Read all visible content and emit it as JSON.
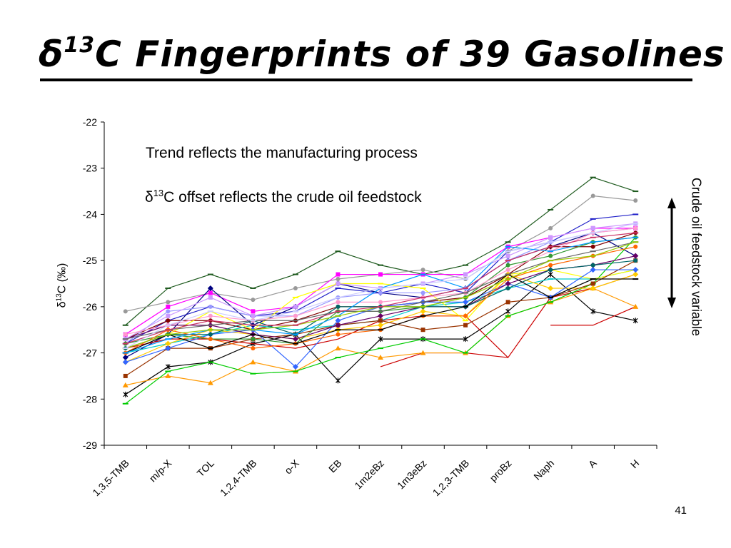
{
  "slide": {
    "title": "Fingerprints of 39 Gasolines",
    "title_prefix": "δ",
    "title_sup": "13",
    "title_c": "C",
    "annotation_trend": "Trend reflects the manufacturing process",
    "annotation_offset_prefix": "δ",
    "annotation_offset_sup": "13",
    "annotation_offset_rest": "C offset reflects the crude oil feedstock",
    "right_note": "Crude oil feedstock variable",
    "slide_number": "41"
  },
  "chart_data": {
    "type": "line",
    "ylabel_prefix": "δ",
    "ylabel_sup": "13",
    "ylabel_rest": "C (‰)",
    "xlabel": "",
    "ylim": [
      -29,
      -22
    ],
    "yticks": [
      -29,
      -28,
      -27,
      -26,
      -25,
      -24,
      -23,
      -22
    ],
    "grid": false,
    "categories": [
      "1,3,5-TMB",
      "m/p-X",
      "TOL",
      "1,2,4-TMB",
      "o-X",
      "EB",
      "1m2eBz",
      "1m3eBz",
      "1,2,3-TMB",
      "proBz",
      "Naph",
      "A",
      "H"
    ],
    "series": [
      {
        "color": "#1e5a1e",
        "marker": "dash",
        "values": [
          -26.4,
          -25.6,
          -25.3,
          -25.6,
          -25.3,
          -24.8,
          -25.1,
          -25.3,
          -25.1,
          -24.6,
          -23.9,
          -23.2,
          -23.5
        ]
      },
      {
        "color": "#999999",
        "marker": "circle",
        "values": [
          -26.1,
          -25.9,
          -25.7,
          -25.85,
          -25.6,
          -25.4,
          -25.3,
          -25.2,
          -25.4,
          -24.8,
          -24.3,
          -23.6,
          -23.7
        ]
      },
      {
        "color": "#1f1fc8",
        "marker": "dash",
        "values": [
          -26.8,
          -26.3,
          -26.0,
          -26.2,
          -26.1,
          -25.6,
          -25.7,
          -25.5,
          -25.7,
          -24.8,
          -24.6,
          -24.1,
          -24.0
        ]
      },
      {
        "color": "#ff00ff",
        "marker": "square",
        "values": [
          -26.6,
          -26.0,
          -25.7,
          -26.1,
          -26.0,
          -25.3,
          -25.3,
          -25.3,
          -25.3,
          -24.7,
          -24.5,
          -24.3,
          -24.3
        ]
      },
      {
        "color": "#000080",
        "marker": "diamond",
        "values": [
          -27.1,
          -26.6,
          -25.6,
          -26.4,
          -26.0,
          -25.5,
          -25.7,
          -25.8,
          -25.6,
          -25.0,
          -24.7,
          -24.4,
          -24.9
        ]
      },
      {
        "color": "#800000",
        "marker": "circle",
        "values": [
          -26.7,
          -26.3,
          -26.3,
          -26.5,
          -26.3,
          -26.0,
          -26.0,
          -25.9,
          -25.8,
          -25.3,
          -24.7,
          -24.7,
          -24.4
        ]
      },
      {
        "color": "#000000",
        "marker": "star",
        "values": [
          -27.9,
          -27.3,
          -27.2,
          -26.8,
          -26.6,
          -27.6,
          -26.7,
          -26.7,
          -26.7,
          -26.1,
          -25.3,
          -26.1,
          -26.3
        ]
      },
      {
        "color": "#cc0000",
        "marker": "none",
        "values": [
          -26.9,
          -26.7,
          -26.7,
          -26.8,
          -26.9,
          -26.7,
          -26.3,
          -26.2,
          -26.2,
          -27.1,
          -25.8,
          -25.6,
          -25.3
        ]
      },
      {
        "color": "#cc0000",
        "marker": "none",
        "values": [
          null,
          null,
          null,
          null,
          null,
          null,
          -27.3,
          -27.0,
          -27.0,
          -27.1,
          null,
          null,
          null
        ]
      },
      {
        "color": "#cc0000",
        "marker": "none",
        "values": [
          null,
          null,
          null,
          null,
          null,
          null,
          null,
          null,
          null,
          null,
          -26.4,
          -26.4,
          -26.0
        ]
      },
      {
        "color": "#ff9900",
        "marker": "triangle",
        "values": [
          -27.7,
          -27.5,
          -27.65,
          -27.2,
          -27.4,
          -26.9,
          -27.1,
          -27.0,
          -27.0,
          -26.2,
          -25.9,
          -25.6,
          -26.0
        ]
      },
      {
        "color": "#00cc00",
        "marker": "dash",
        "values": [
          -28.1,
          -27.4,
          -27.2,
          -27.45,
          -27.4,
          -27.1,
          -26.9,
          -26.7,
          -27.0,
          -26.2,
          -25.9,
          -25.5,
          -24.5
        ]
      },
      {
        "color": "#00cccc",
        "marker": "dash",
        "values": [
          -27.0,
          -26.8,
          -26.6,
          -26.4,
          -26.5,
          -26.4,
          -26.3,
          -26.0,
          -25.9,
          -25.6,
          -25.4,
          -25.4,
          -25.2
        ]
      },
      {
        "color": "#ffcc00",
        "marker": "diamond",
        "values": [
          -27.2,
          -26.8,
          -26.5,
          -26.6,
          -26.7,
          -26.5,
          -26.4,
          -26.1,
          -26.2,
          -25.3,
          -25.6,
          -25.6,
          -25.3
        ]
      },
      {
        "color": "#ffff00",
        "marker": "dash",
        "values": [
          -26.9,
          -26.6,
          -26.1,
          -26.5,
          -25.8,
          -25.5,
          -25.5,
          -25.6,
          -26.3,
          -25.3,
          -25.2,
          -25.4,
          -25.2
        ]
      },
      {
        "color": "#993300",
        "marker": "square",
        "values": [
          -27.5,
          -26.9,
          -26.9,
          -26.7,
          -26.6,
          -26.4,
          -26.3,
          -26.5,
          -26.4,
          -25.9,
          -25.8,
          -25.5,
          -25.0
        ]
      },
      {
        "color": "#3366ff",
        "marker": "diamond",
        "values": [
          -27.2,
          -26.9,
          -26.6,
          -26.5,
          -27.3,
          -26.3,
          -26.0,
          -25.9,
          -25.9,
          -25.5,
          -25.8,
          -25.2,
          -25.2
        ]
      },
      {
        "color": "#660066",
        "marker": "diamond",
        "values": [
          -26.7,
          -26.4,
          -26.4,
          -26.6,
          -26.7,
          -26.4,
          -26.2,
          -26.0,
          -26.0,
          -25.5,
          -25.2,
          -25.1,
          -24.9
        ]
      },
      {
        "color": "#006666",
        "marker": "circle",
        "values": [
          -26.9,
          -26.6,
          -26.6,
          -26.3,
          -26.6,
          -26.0,
          -26.0,
          -26.0,
          -26.0,
          -25.6,
          -25.2,
          -25.1,
          -25.0
        ]
      },
      {
        "color": "#9999ff",
        "marker": "circle",
        "values": [
          -26.8,
          -26.1,
          -26.0,
          -26.2,
          -26.2,
          -25.8,
          -25.7,
          -25.7,
          -25.6,
          -25.0,
          -24.6,
          -24.4,
          -24.3
        ]
      },
      {
        "color": "#cc99ff",
        "marker": "square",
        "values": [
          -26.7,
          -26.2,
          -25.8,
          -26.2,
          -26.0,
          -25.5,
          -25.6,
          -25.5,
          -25.3,
          -24.9,
          -24.5,
          -24.3,
          -24.2
        ]
      },
      {
        "color": "#339933",
        "marker": "circle",
        "values": [
          -26.8,
          -26.6,
          -26.7,
          -26.7,
          -26.8,
          -26.1,
          -26.1,
          -26.0,
          -25.8,
          -25.1,
          -24.9,
          -24.6,
          -24.5
        ]
      },
      {
        "color": "#ff6600",
        "marker": "circle",
        "values": [
          -27.0,
          -26.5,
          -26.7,
          -26.9,
          -26.8,
          -26.6,
          -26.5,
          -26.2,
          -26.2,
          -25.4,
          -25.1,
          -24.9,
          -24.7
        ]
      },
      {
        "color": "#ff99cc",
        "marker": "circle",
        "values": [
          -26.6,
          -26.4,
          -26.2,
          -26.3,
          -26.2,
          -25.9,
          -25.9,
          -25.8,
          -25.7,
          -25.2,
          -24.8,
          -24.4,
          -24.3
        ]
      },
      {
        "color": "#000000",
        "marker": "dash",
        "values": [
          -27.0,
          -26.6,
          -26.9,
          -26.6,
          -26.8,
          -26.5,
          -26.5,
          -26.2,
          -26.0,
          -25.3,
          -25.8,
          -25.4,
          -25.4
        ]
      },
      {
        "color": "#666666",
        "marker": "dash",
        "values": [
          -26.7,
          -26.5,
          -26.4,
          -26.3,
          -26.3,
          -26.1,
          -26.1,
          -25.9,
          -25.7,
          -25.3,
          -25.0,
          -24.8,
          -24.6
        ]
      },
      {
        "color": "#0099ff",
        "marker": "dash",
        "values": [
          -27.0,
          -26.7,
          -26.5,
          -26.5,
          -26.6,
          -26.2,
          -25.6,
          -25.3,
          -25.6,
          -24.7,
          -24.8,
          -24.6,
          -24.5
        ]
      },
      {
        "color": "#99cc00",
        "marker": "dash",
        "values": [
          -26.9,
          -26.6,
          -26.5,
          -26.5,
          -26.4,
          -26.2,
          -26.0,
          -26.0,
          -25.8,
          -25.4,
          -25.0,
          -24.9,
          -24.6
        ]
      },
      {
        "color": "#cc3366",
        "marker": "dash",
        "values": [
          -26.8,
          -26.5,
          -26.3,
          -26.4,
          -26.4,
          -26.1,
          -26.0,
          -25.8,
          -25.6,
          -25.0,
          -24.7,
          -24.5,
          -24.4
        ]
      },
      {
        "color": "#ccccff",
        "marker": "dash",
        "values": [
          -26.9,
          -26.4,
          -26.1,
          -26.3,
          -26.1,
          -25.8,
          -25.6,
          -25.5,
          -25.4,
          -24.8,
          -24.6,
          -24.4,
          -24.2
        ]
      }
    ]
  }
}
